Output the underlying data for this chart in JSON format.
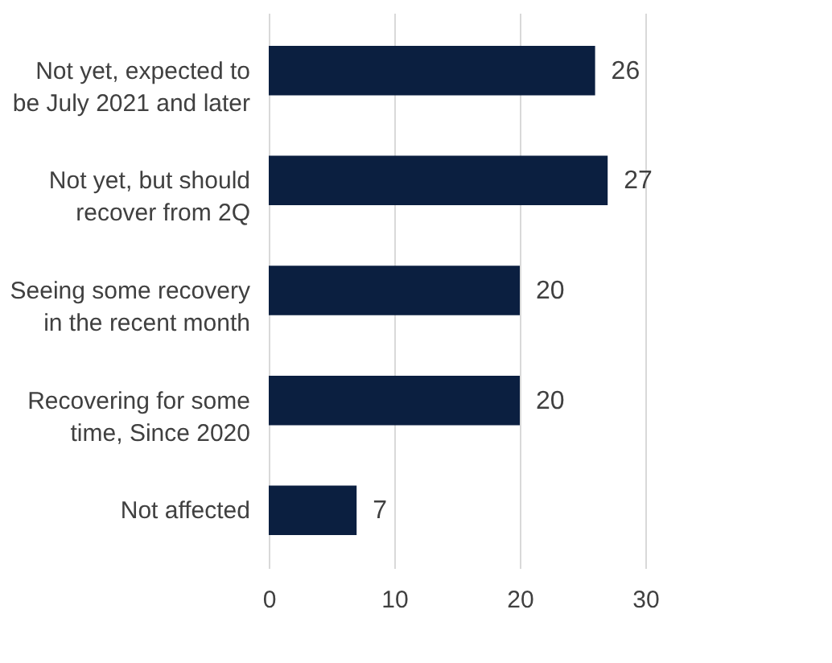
{
  "chart_data": {
    "type": "bar",
    "orientation": "horizontal",
    "categories": [
      "Not yet, expected to be July 2021 and later",
      "Not yet, but should recover from 2Q",
      "Seeing some recovery in the recent month",
      "Recovering for some time, Since 2020",
      "Not affected"
    ],
    "values": [
      26,
      27,
      20,
      20,
      7
    ],
    "color": "#0b1f40",
    "xlim": [
      0,
      30
    ],
    "xticks": [
      0,
      10,
      20,
      30
    ],
    "grid": "x",
    "data_labels": true
  }
}
